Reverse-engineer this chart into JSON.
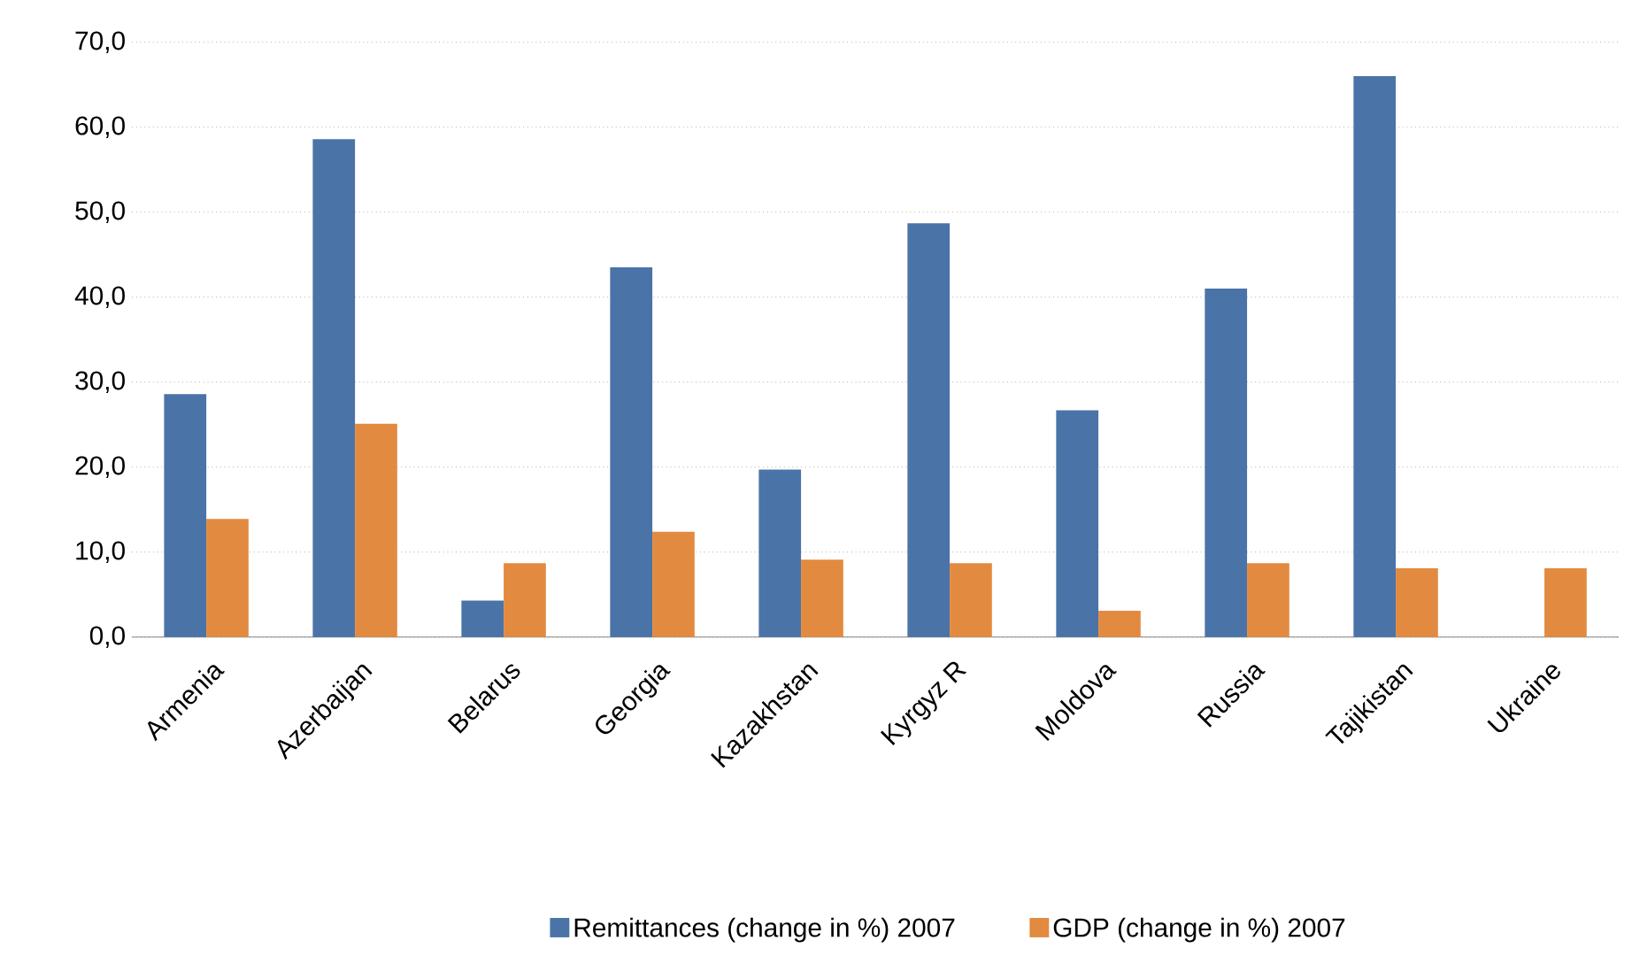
{
  "chart_data": {
    "type": "bar",
    "categories": [
      "Armenia",
      "Azerbaijan",
      "Belarus",
      "Georgia",
      "Kazakhstan",
      "Kyrgyz R",
      "Moldova",
      "Russia",
      "Tajikistan",
      "Ukraine"
    ],
    "series": [
      {
        "name": "Remittances (change in %) 2007",
        "color": "#4a73a8",
        "values": [
          28.6,
          58.6,
          4.3,
          43.5,
          19.7,
          48.7,
          26.7,
          41.0,
          66.0,
          null
        ]
      },
      {
        "name": "GDP (change in %) 2007",
        "color": "#e28a3f",
        "values": [
          13.9,
          25.1,
          8.7,
          12.4,
          9.1,
          8.7,
          3.1,
          8.7,
          8.1,
          8.1
        ]
      }
    ],
    "ylim": [
      0,
      70
    ],
    "yticks": [
      {
        "value": 0,
        "label": "0,0"
      },
      {
        "value": 10,
        "label": "10,0"
      },
      {
        "value": 20,
        "label": "20,0"
      },
      {
        "value": 30,
        "label": "30,0"
      },
      {
        "value": 40,
        "label": "40,0"
      },
      {
        "value": 50,
        "label": "50,0"
      },
      {
        "value": 60,
        "label": "60,0"
      },
      {
        "value": 70,
        "label": "70,0"
      }
    ],
    "grid": "y",
    "legend": "bottom"
  }
}
